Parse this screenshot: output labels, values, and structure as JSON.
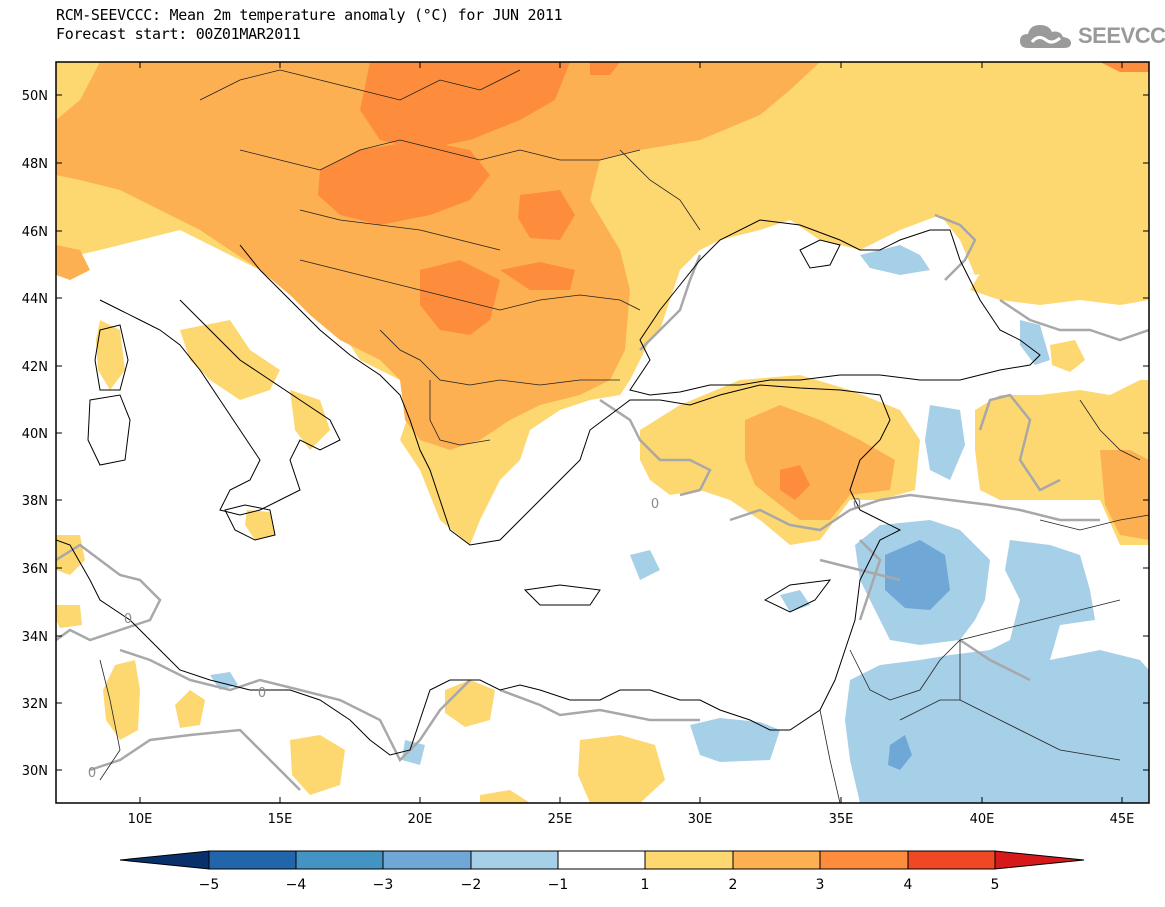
{
  "title": {
    "line1": "RCM-SEEVCCC: Mean 2m temperature anomaly (°C) for JUN 2011",
    "line2": "Forecast start: 00Z01MAR2011"
  },
  "logo": {
    "text": "SEEVCCC",
    "icon": "cloud-icon"
  },
  "map": {
    "lon_range": [
      7,
      46
    ],
    "lat_range": [
      29,
      51
    ],
    "lat_labels": [
      "50N",
      "48N",
      "46N",
      "44N",
      "42N",
      "40N",
      "38N",
      "36N",
      "34N",
      "32N",
      "30N"
    ],
    "lon_labels": [
      "10E",
      "15E",
      "20E",
      "25E",
      "30E",
      "35E",
      "40E",
      "45E"
    ],
    "contour_labels": [
      "0",
      "0",
      "0",
      "0",
      "0"
    ]
  },
  "legend": {
    "ticks": [
      "−5",
      "−4",
      "−3",
      "−2",
      "−1",
      "1",
      "2",
      "3",
      "4",
      "5"
    ],
    "colors": [
      "#08306b",
      "#2166ac",
      "#4393c3",
      "#6fa8d6",
      "#a6cfe8",
      "#ffffff",
      "#fdd870",
      "#fdb052",
      "#fd8d3c",
      "#f04825",
      "#d7191c"
    ]
  }
}
